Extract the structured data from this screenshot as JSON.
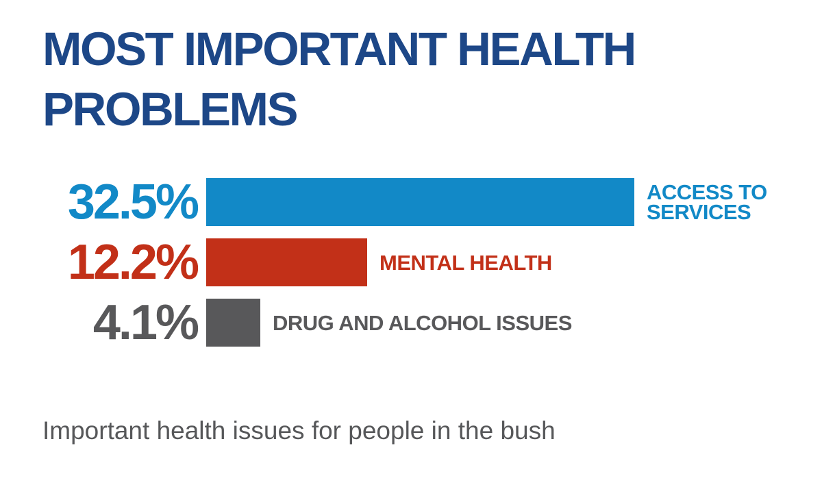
{
  "chart_data": {
    "type": "bar",
    "orientation": "horizontal",
    "title": "MOST IMPORTANT HEALTH PROBLEMS",
    "caption": "Important health issues for people in the bush",
    "categories": [
      "ACCESS TO SERVICES",
      "MENTAL HEALTH",
      "DRUG AND ALCOHOL ISSUES"
    ],
    "values": [
      32.5,
      12.2,
      4.1
    ],
    "value_labels": [
      "32.5%",
      "12.2%",
      "4.1%"
    ],
    "bar_colors": [
      "#1289c7",
      "#c23018",
      "#58585a"
    ],
    "xlim": [
      0,
      32.5
    ],
    "grid": false,
    "legend_position": "none",
    "value_label_position": "left-of-bar",
    "category_label_position": "right-of-bar"
  },
  "theme": {
    "background": "#ffffff",
    "title_color": "#1d4787",
    "caption_color": "#565759"
  }
}
